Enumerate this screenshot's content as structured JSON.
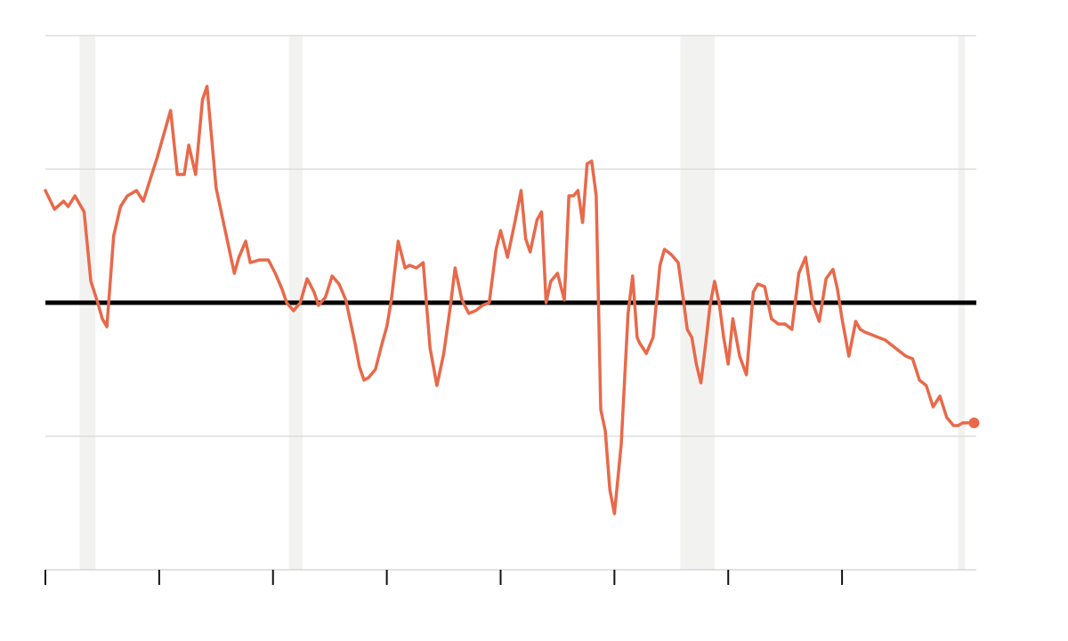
{
  "chart_data": {
    "type": "line",
    "title": "",
    "xlabel": "",
    "ylabel": "",
    "xlim": [
      1980,
      2020.9
    ],
    "ylim": [
      -2,
      2
    ],
    "baseline": 0,
    "grid": true,
    "legend": "none",
    "x_ticks": [
      1980,
      1985,
      1990,
      1995,
      2000,
      2005,
      2010,
      2015
    ],
    "y_gridlines": [
      -1,
      1,
      2
    ],
    "shaded_periods": [
      {
        "start": 1981.5,
        "end": 1982.2
      },
      {
        "start": 1990.7,
        "end": 1991.3
      },
      {
        "start": 2007.9,
        "end": 2009.4
      },
      {
        "start": 2020.1,
        "end": 2020.4
      }
    ],
    "series": [
      {
        "color": "#e8694a",
        "x": [
          1980.0,
          1980.4,
          1980.8,
          1981.0,
          1981.3,
          1981.7,
          1982.0,
          1982.3,
          1982.5,
          1982.7,
          1983.0,
          1983.3,
          1983.6,
          1984.0,
          1984.3,
          1984.6,
          1984.9,
          1985.2,
          1985.5,
          1985.8,
          1986.1,
          1986.3,
          1986.6,
          1986.9,
          1987.1,
          1987.5,
          1988.0,
          1988.3,
          1988.5,
          1988.8,
          1989.0,
          1989.4,
          1989.8,
          1990.1,
          1990.4,
          1990.6,
          1990.9,
          1991.2,
          1991.5,
          1991.8,
          1992.0,
          1992.3,
          1992.6,
          1992.9,
          1993.2,
          1993.4,
          1993.6,
          1993.8,
          1994.0,
          1994.2,
          1994.5,
          1994.8,
          1995.0,
          1995.2,
          1995.5,
          1995.8,
          1996.0,
          1996.3,
          1996.6,
          1996.9,
          1997.2,
          1997.5,
          1997.8,
          1998.0,
          1998.3,
          1998.6,
          1998.9,
          1999.2,
          1999.5,
          1999.8,
          2000.0,
          2000.3,
          2000.6,
          2000.9,
          2001.1,
          2001.3,
          2001.6,
          2001.8,
          2002.0,
          2002.2,
          2002.5,
          2002.8,
          2003.0,
          2003.2,
          2003.4,
          2003.6,
          2003.8,
          2004.0,
          2004.2,
          2004.4,
          2004.6,
          2004.8,
          2005.0,
          2005.3,
          2005.6,
          2005.8,
          2006.0,
          2006.1,
          2006.4,
          2006.7,
          2007.0,
          2007.2,
          2007.5,
          2007.8,
          2008.0,
          2008.2,
          2008.4,
          2008.6,
          2008.8,
          2009.0,
          2009.2,
          2009.4,
          2009.6,
          2009.8,
          2010.0,
          2010.2,
          2010.5,
          2010.8,
          2011.1,
          2011.3,
          2011.6,
          2011.9,
          2012.2,
          2012.5,
          2012.8,
          2013.1,
          2013.4,
          2013.7,
          2014.0,
          2014.3,
          2014.6,
          2014.8,
          2015.0,
          2015.3,
          2015.6,
          2015.8,
          2016.0,
          2016.3,
          2016.6,
          2016.9,
          2017.2,
          2017.5,
          2017.8,
          2018.1,
          2018.4,
          2018.7,
          2019.0,
          2019.3,
          2019.6,
          2019.9,
          2020.1,
          2020.3,
          2020.5,
          2020.8
        ],
        "y": [
          0.84,
          0.7,
          0.76,
          0.72,
          0.8,
          0.68,
          0.16,
          0.0,
          -0.12,
          -0.18,
          0.5,
          0.72,
          0.8,
          0.84,
          0.76,
          0.92,
          1.08,
          1.26,
          1.44,
          0.96,
          0.96,
          1.18,
          0.96,
          1.52,
          1.62,
          0.86,
          0.46,
          0.22,
          0.34,
          0.46,
          0.3,
          0.32,
          0.32,
          0.22,
          0.1,
          0.0,
          -0.06,
          0.0,
          0.18,
          0.08,
          -0.02,
          0.04,
          0.2,
          0.14,
          0.02,
          -0.14,
          -0.3,
          -0.48,
          -0.58,
          -0.56,
          -0.5,
          -0.3,
          -0.18,
          0.02,
          0.46,
          0.26,
          0.28,
          0.26,
          0.3,
          -0.34,
          -0.62,
          -0.38,
          -0.02,
          0.26,
          0.02,
          -0.08,
          -0.06,
          -0.02,
          0.0,
          0.4,
          0.54,
          0.34,
          0.58,
          0.84,
          0.48,
          0.38,
          0.62,
          0.68,
          0.0,
          0.16,
          0.22,
          0.02,
          0.8,
          0.8,
          0.84,
          0.6,
          1.04,
          1.06,
          0.8,
          -0.8,
          -0.96,
          -1.4,
          -1.58,
          -1.06,
          -0.08,
          0.2,
          -0.26,
          -0.3,
          -0.38,
          -0.26,
          0.28,
          0.4,
          0.36,
          0.3,
          0.06,
          -0.2,
          -0.26,
          -0.46,
          -0.6,
          -0.32,
          -0.02,
          0.16,
          0.0,
          -0.26,
          -0.46,
          -0.12,
          -0.4,
          -0.54,
          0.08,
          0.14,
          0.12,
          -0.12,
          -0.16,
          -0.16,
          -0.2,
          0.22,
          0.34,
          0.0,
          -0.14,
          0.18,
          0.25,
          0.1,
          -0.12,
          -0.4,
          -0.14,
          -0.2,
          -0.22,
          -0.24,
          -0.26,
          -0.28,
          -0.32,
          -0.36,
          -0.4,
          -0.42,
          -0.58,
          -0.62,
          -0.78,
          -0.7,
          -0.86,
          -0.92,
          -0.92,
          -0.9,
          -0.9,
          -0.9
        ]
      }
    ]
  }
}
